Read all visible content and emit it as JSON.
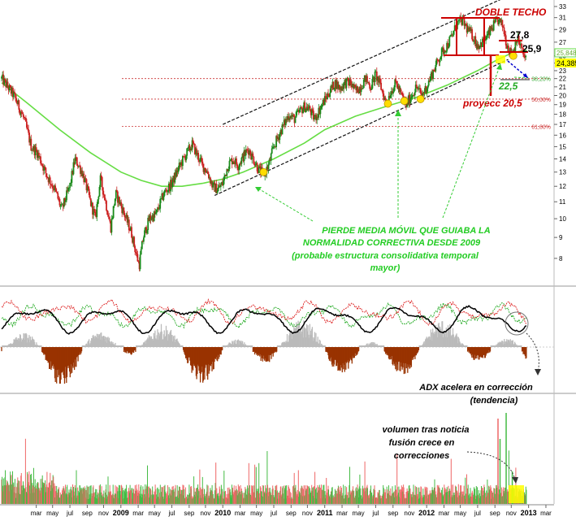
{
  "colors": {
    "up_candle": "#1a8a1a",
    "down_candle": "#cc2222",
    "moving_average": "#66dd44",
    "channel": "#111111",
    "annotation_red": "#cc0000",
    "annotation_green": "#22cc22",
    "fib_line": "#cc3333",
    "adx_line": "#000000",
    "di_plus": "#22aa22",
    "di_minus": "#dd2222",
    "histogram_neg": "#993300",
    "histogram_pos": "#bbbbbb",
    "highlight": "#ffff00",
    "target_blue": "#0000cc"
  },
  "chart_data": [
    {
      "type": "line",
      "subtype": "candlestick",
      "panel": "price",
      "scale": "log",
      "ylim": [
        7.5,
        33
      ],
      "y_ticks": [
        33,
        31,
        29,
        27,
        25,
        24,
        23,
        22,
        21,
        20,
        19,
        18,
        17,
        16,
        15,
        14,
        13,
        12,
        11,
        10,
        9,
        8
      ],
      "last_values": [
        "25,848",
        "24,385"
      ],
      "series": [
        {
          "points": [
            [
              2007.83,
              22.0
            ],
            [
              2007.95,
              20.0
            ],
            [
              2008.05,
              17.5
            ],
            [
              2008.12,
              15.0
            ],
            [
              2008.18,
              14.5
            ],
            [
              2008.27,
              12.8
            ],
            [
              2008.35,
              11.8
            ],
            [
              2008.42,
              10.5
            ],
            [
              2008.5,
              12.0
            ],
            [
              2008.55,
              14.0
            ],
            [
              2008.62,
              13.0
            ],
            [
              2008.7,
              11.0
            ],
            [
              2008.75,
              10.0
            ],
            [
              2008.8,
              12.5
            ],
            [
              2008.85,
              11.0
            ],
            [
              2008.9,
              9.5
            ],
            [
              2008.95,
              11.5
            ],
            [
              2009.0,
              10.8
            ],
            [
              2009.05,
              10.0
            ],
            [
              2009.1,
              9.3
            ],
            [
              2009.15,
              8.2
            ],
            [
              2009.18,
              7.7
            ],
            [
              2009.22,
              9.0
            ],
            [
              2009.28,
              10.0
            ],
            [
              2009.35,
              10.3
            ],
            [
              2009.42,
              11.5
            ],
            [
              2009.5,
              12.2
            ],
            [
              2009.58,
              13.5
            ],
            [
              2009.65,
              14.5
            ],
            [
              2009.7,
              15.2
            ],
            [
              2009.75,
              14.3
            ],
            [
              2009.8,
              13.5
            ],
            [
              2009.85,
              13.0
            ],
            [
              2009.9,
              12.0
            ],
            [
              2009.95,
              11.8
            ],
            [
              2010.0,
              12.2
            ],
            [
              2010.05,
              13.5
            ],
            [
              2010.1,
              14.0
            ],
            [
              2010.15,
              13.5
            ],
            [
              2010.2,
              14.2
            ],
            [
              2010.25,
              14.8
            ],
            [
              2010.3,
              14.0
            ],
            [
              2010.35,
              13.2
            ],
            [
              2010.4,
              12.8
            ],
            [
              2010.45,
              13.5
            ],
            [
              2010.5,
              15.0
            ],
            [
              2010.55,
              16.0
            ],
            [
              2010.6,
              17.0
            ],
            [
              2010.65,
              18.0
            ],
            [
              2010.7,
              17.5
            ],
            [
              2010.75,
              18.2
            ],
            [
              2010.8,
              18.8
            ],
            [
              2010.85,
              18.5
            ],
            [
              2010.9,
              17.5
            ],
            [
              2010.95,
              18.5
            ],
            [
              2011.0,
              19.5
            ],
            [
              2011.05,
              20.5
            ],
            [
              2011.1,
              21.5
            ],
            [
              2011.15,
              20.8
            ],
            [
              2011.2,
              21.5
            ],
            [
              2011.25,
              21.5
            ],
            [
              2011.3,
              20.5
            ],
            [
              2011.35,
              21.0
            ],
            [
              2011.4,
              22.0
            ],
            [
              2011.45,
              21.0
            ],
            [
              2011.5,
              22.5
            ],
            [
              2011.55,
              21.0
            ],
            [
              2011.6,
              19.2
            ],
            [
              2011.65,
              20.5
            ],
            [
              2011.7,
              21.5
            ],
            [
              2011.75,
              20.0
            ],
            [
              2011.8,
              19.0
            ],
            [
              2011.85,
              20.0
            ],
            [
              2011.9,
              21.0
            ],
            [
              2011.95,
              20.0
            ],
            [
              2012.0,
              21.0
            ],
            [
              2012.05,
              22.5
            ],
            [
              2012.1,
              24.0
            ],
            [
              2012.15,
              25.5
            ],
            [
              2012.2,
              26.5
            ],
            [
              2012.25,
              28.0
            ],
            [
              2012.3,
              30.0
            ],
            [
              2012.35,
              30.5
            ],
            [
              2012.4,
              29.0
            ],
            [
              2012.45,
              28.0
            ],
            [
              2012.5,
              26.5
            ],
            [
              2012.55,
              27.0
            ],
            [
              2012.6,
              28.0
            ],
            [
              2012.65,
              29.5
            ],
            [
              2012.7,
              30.5
            ],
            [
              2012.75,
              29.5
            ],
            [
              2012.78,
              27.0
            ],
            [
              2012.82,
              25.5
            ],
            [
              2012.86,
              26.0
            ],
            [
              2012.88,
              27.8
            ],
            [
              2012.92,
              26.5
            ],
            [
              2012.95,
              25.0
            ],
            [
              2012.98,
              24.4
            ]
          ]
        },
        {
          "name": "media móvil",
          "points": [
            [
              2007.83,
              21.5
            ],
            [
              2008.1,
              19.0
            ],
            [
              2008.4,
              16.5
            ],
            [
              2008.7,
              14.5
            ],
            [
              2009.0,
              13.0
            ],
            [
              2009.2,
              12.4
            ],
            [
              2009.4,
              12.0
            ],
            [
              2009.6,
              12.0
            ],
            [
              2009.8,
              12.2
            ],
            [
              2010.0,
              12.5
            ],
            [
              2010.2,
              13.0
            ],
            [
              2010.5,
              14.0
            ],
            [
              2010.8,
              15.3
            ],
            [
              2011.0,
              16.5
            ],
            [
              2011.3,
              17.8
            ],
            [
              2011.6,
              18.8
            ],
            [
              2011.9,
              19.8
            ],
            [
              2012.2,
              21.2
            ],
            [
              2012.5,
              23.0
            ],
            [
              2012.7,
              24.5
            ],
            [
              2012.85,
              25.5
            ],
            [
              2012.98,
              25.8
            ]
          ]
        }
      ],
      "channel": {
        "upper": [
          [
            2010.0,
            17.0
          ],
          [
            2012.8,
            35.0
          ]
        ],
        "lower": [
          [
            2009.92,
            11.4
          ],
          [
            2012.8,
            24.5
          ]
        ]
      },
      "fibonacci": [
        {
          "label": "38,20%",
          "value": 22.0
        },
        {
          "label": "50,00%",
          "value": 19.6
        },
        {
          "label": "61,80%",
          "value": 16.8
        }
      ],
      "touch_points": [
        [
          2010.4,
          13.0
        ],
        [
          2011.62,
          19.1
        ],
        [
          2011.78,
          19.4
        ],
        [
          2011.94,
          19.6
        ],
        [
          2012.85,
          25.0
        ]
      ],
      "annotations": {
        "doble_techo": "DOBLE TECHO",
        "level_278": "27,8",
        "level_259": "25,9",
        "level_225": "22,5",
        "proyecc": "proyecc 20,5",
        "green_text": [
          "PIERDE MEDIA MÓVIL QUE GUIABA LA",
          "NORMALIDAD CORRECTIVA DESDE 2009",
          "(probable estructura consolidativa temporal",
          "mayor)"
        ]
      }
    },
    {
      "type": "line",
      "panel": "indicator",
      "annotation": [
        "ADX acelera en corrección",
        "(tendencia)"
      ]
    },
    {
      "type": "bar",
      "panel": "volume",
      "annotation": [
        "volumen tras noticia",
        "fusión crece en",
        "correcciones"
      ]
    }
  ],
  "x_axis": {
    "labels": [
      {
        "t": "mar",
        "x": 2008.17
      },
      {
        "t": "may",
        "x": 2008.33
      },
      {
        "t": "jul",
        "x": 2008.5
      },
      {
        "t": "sep",
        "x": 2008.67
      },
      {
        "t": "nov",
        "x": 2008.83
      },
      {
        "t": "2009",
        "x": 2009.0,
        "bold": true
      },
      {
        "t": "mar",
        "x": 2009.17
      },
      {
        "t": "may",
        "x": 2009.33
      },
      {
        "t": "jul",
        "x": 2009.5
      },
      {
        "t": "sep",
        "x": 2009.67
      },
      {
        "t": "nov",
        "x": 2009.83
      },
      {
        "t": "2010",
        "x": 2010.0,
        "bold": true
      },
      {
        "t": "mar",
        "x": 2010.17
      },
      {
        "t": "may",
        "x": 2010.33
      },
      {
        "t": "jul",
        "x": 2010.5
      },
      {
        "t": "sep",
        "x": 2010.67
      },
      {
        "t": "nov",
        "x": 2010.83
      },
      {
        "t": "2011",
        "x": 2011.0,
        "bold": true
      },
      {
        "t": "mar",
        "x": 2011.17
      },
      {
        "t": "may",
        "x": 2011.33
      },
      {
        "t": "jul",
        "x": 2011.5
      },
      {
        "t": "sep",
        "x": 2011.67
      },
      {
        "t": "nov",
        "x": 2011.83
      },
      {
        "t": "2012",
        "x": 2012.0,
        "bold": true
      },
      {
        "t": "mar",
        "x": 2012.17
      },
      {
        "t": "may",
        "x": 2012.33
      },
      {
        "t": "jul",
        "x": 2012.5
      },
      {
        "t": "sep",
        "x": 2012.67
      },
      {
        "t": "nov",
        "x": 2012.83
      },
      {
        "t": "2013",
        "x": 2013.0,
        "bold": true
      },
      {
        "t": "mar",
        "x": 2013.17
      }
    ]
  }
}
